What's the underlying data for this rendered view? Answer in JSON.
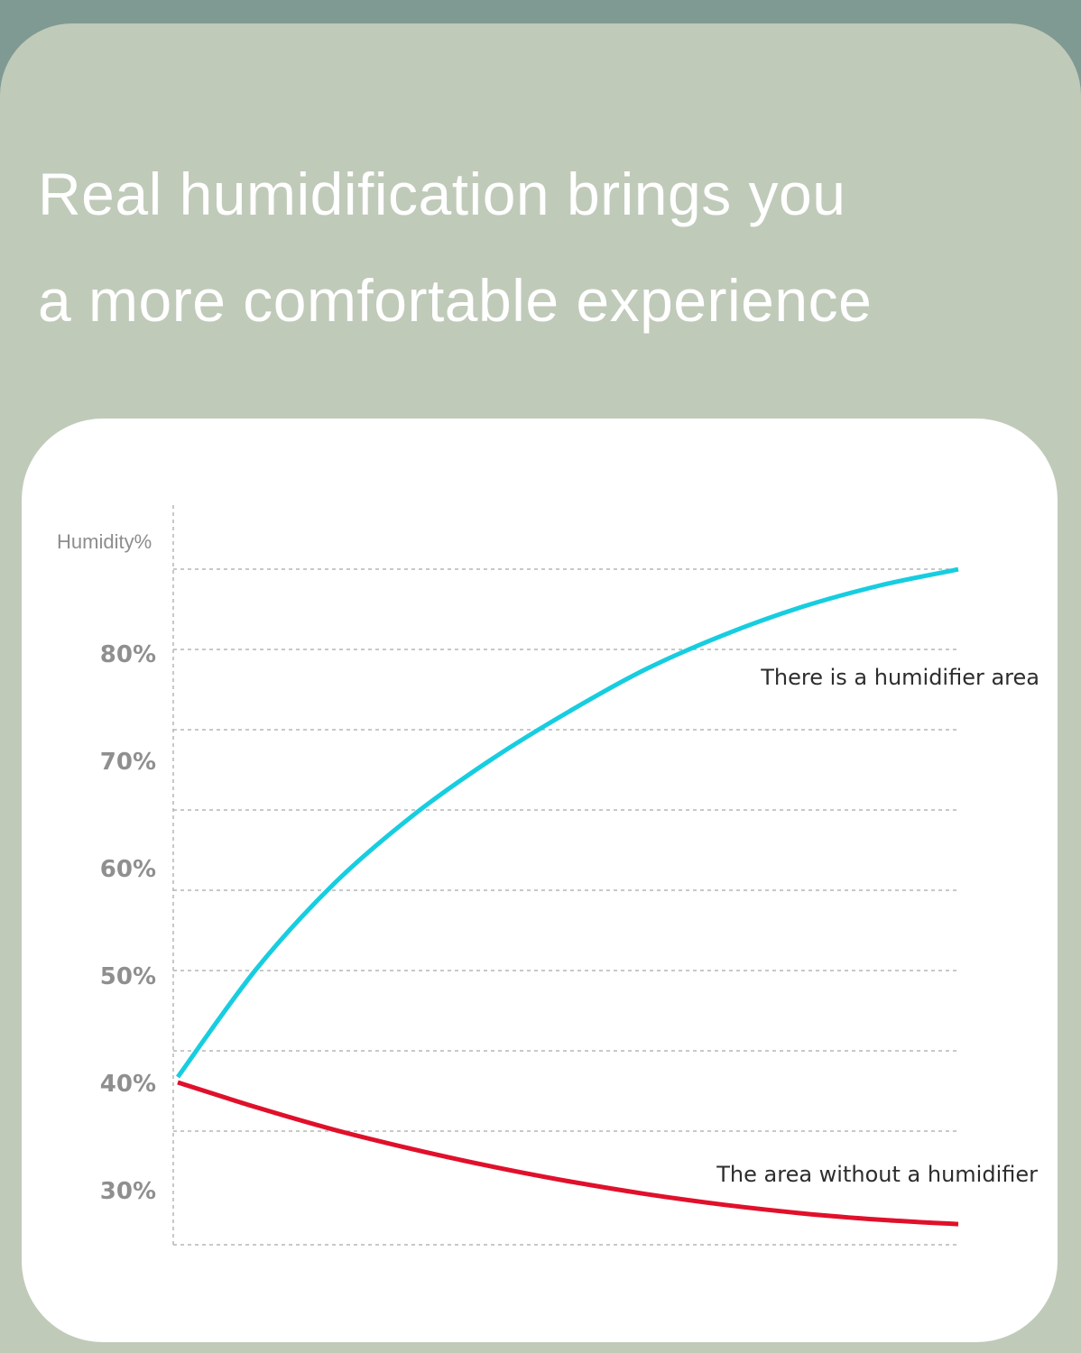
{
  "headline": {
    "line1": "Real humidification brings you",
    "line2": "a more comfortable experience"
  },
  "colors": {
    "background": "#c0cab9",
    "humidifier": "#17cde0",
    "no_humidifier": "#e0102b"
  },
  "chart_data": {
    "type": "line",
    "ylabel": "Humidity%",
    "xlabel": "",
    "yticks": [
      "80%",
      "70%",
      "60%",
      "50%",
      "40%",
      "30%"
    ],
    "ytick_values": [
      80,
      70,
      60,
      50,
      40,
      30
    ],
    "ylim": [
      25,
      90
    ],
    "xlim": [
      0,
      10
    ],
    "grid": true,
    "series": [
      {
        "name": "There is a humidifier area",
        "color": "#17cde0",
        "x": [
          0,
          1,
          2,
          3,
          4,
          5,
          6,
          7,
          8,
          9,
          10
        ],
        "y": [
          40.5,
          50.5,
          58.5,
          64.8,
          70.0,
          74.5,
          78.5,
          81.7,
          84.3,
          86.3,
          87.8
        ]
      },
      {
        "name": "The area without a humidifier",
        "color": "#e0102b",
        "x": [
          0,
          1,
          2,
          3,
          4,
          5,
          6,
          7,
          8,
          9,
          10
        ],
        "y": [
          40.0,
          37.7,
          35.6,
          33.8,
          32.2,
          30.8,
          29.6,
          28.6,
          27.8,
          27.2,
          26.8
        ]
      }
    ]
  }
}
